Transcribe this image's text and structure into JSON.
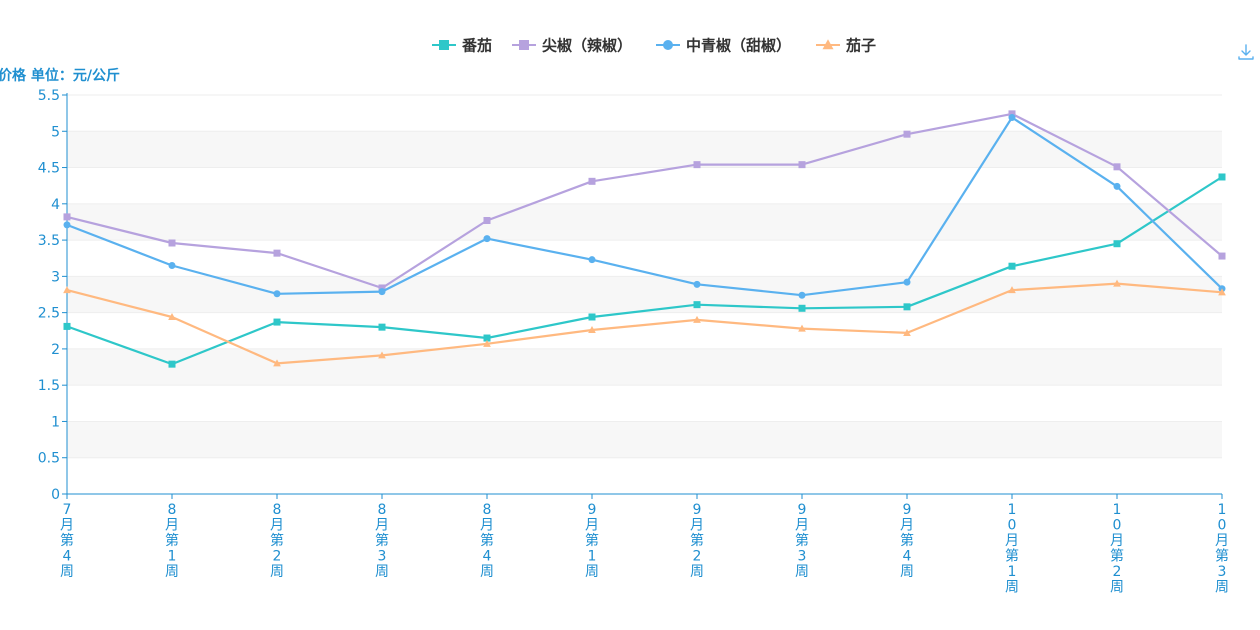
{
  "chart_data": {
    "type": "line",
    "ylabel": "价格 单位：元/公斤",
    "ylim": [
      0,
      5.5
    ],
    "yticks": [
      0,
      0.5,
      1,
      1.5,
      2,
      2.5,
      3,
      3.5,
      4,
      4.5,
      5,
      5.5
    ],
    "ytick_labels": [
      "0",
      "0.5",
      "1",
      "1.5",
      "2",
      "2.5",
      "3",
      "3.5",
      "4",
      "4.5",
      "5",
      "5.5"
    ],
    "categories": [
      "7月第4周",
      "8月第1周",
      "8月第2周",
      "8月第3周",
      "8月第4周",
      "9月第1周",
      "9月第2周",
      "9月第3周",
      "9月第4周",
      "10月第1周",
      "10月第2周",
      "10月第3周"
    ],
    "grid": true,
    "legend_position": "top-center",
    "series": [
      {
        "name": "番茄",
        "color": "#2ec7c9",
        "marker": "square",
        "values": [
          2.31,
          1.79,
          2.37,
          2.3,
          2.15,
          2.44,
          2.61,
          2.56,
          2.58,
          3.14,
          3.45,
          4.37
        ]
      },
      {
        "name": "尖椒（辣椒）",
        "color": "#b6a2de",
        "marker": "square",
        "values": [
          3.82,
          3.46,
          3.32,
          2.84,
          3.77,
          4.31,
          4.54,
          4.54,
          4.96,
          5.24,
          4.51,
          3.28
        ]
      },
      {
        "name": "中青椒（甜椒）",
        "color": "#5ab1ef",
        "marker": "circle",
        "values": [
          3.71,
          3.15,
          2.76,
          2.79,
          3.52,
          3.23,
          2.89,
          2.74,
          2.92,
          5.19,
          4.24,
          2.83
        ]
      },
      {
        "name": "茄子",
        "color": "#ffb980",
        "marker": "triangle",
        "values": [
          2.81,
          2.44,
          1.8,
          1.91,
          2.07,
          2.26,
          2.4,
          2.28,
          2.22,
          2.81,
          2.9,
          2.78
        ]
      }
    ]
  },
  "toolbox": {
    "download_icon": "download-icon"
  }
}
